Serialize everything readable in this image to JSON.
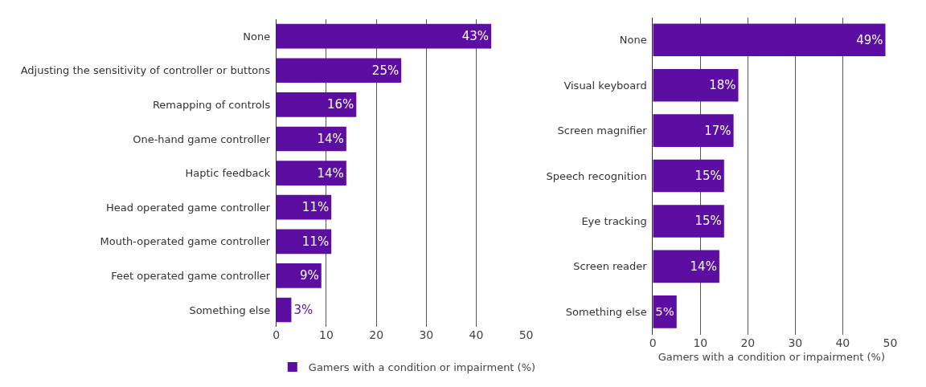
{
  "chart_data": [
    {
      "type": "bar",
      "orientation": "horizontal",
      "categories": [
        "None",
        "Adjusting the sensitivity of controller or buttons",
        "Remapping of controls",
        "One-hand game controller",
        "Haptic feedback",
        "Head operated game controller",
        "Mouth-operated game controller",
        "Feet operated game controller",
        "Something else"
      ],
      "series": [
        {
          "name": "Gamers with a condition or impairment (%)",
          "color": "#5b0ea1",
          "values": [
            43,
            25,
            16,
            14,
            14,
            11,
            11,
            9,
            3
          ],
          "value_labels": [
            "43%",
            "25%",
            "16%",
            "14%",
            "14%",
            "11%",
            "11%",
            "9%",
            "3%"
          ]
        }
      ],
      "xlim": [
        0,
        50
      ],
      "xticks": [
        0,
        10,
        20,
        30,
        40,
        50
      ],
      "grid": "x",
      "legend": "bottom"
    },
    {
      "type": "bar",
      "orientation": "horizontal",
      "categories": [
        "None",
        "Visual keyboard",
        "Screen magnifier",
        "Speech recognition",
        "Eye tracking",
        "Screen reader",
        "Something else"
      ],
      "series": [
        {
          "color": "#5b0ea1",
          "values": [
            49,
            18,
            17,
            15,
            15,
            14,
            5
          ],
          "value_labels": [
            "49%",
            "18%",
            "17%",
            "15%",
            "15%",
            "14%",
            "5%"
          ]
        }
      ],
      "xlabel": "Gamers with a condition or impairment (%)",
      "xlim": [
        0,
        50
      ],
      "xticks": [
        0,
        10,
        20,
        30,
        40,
        50
      ],
      "grid": "x"
    }
  ]
}
